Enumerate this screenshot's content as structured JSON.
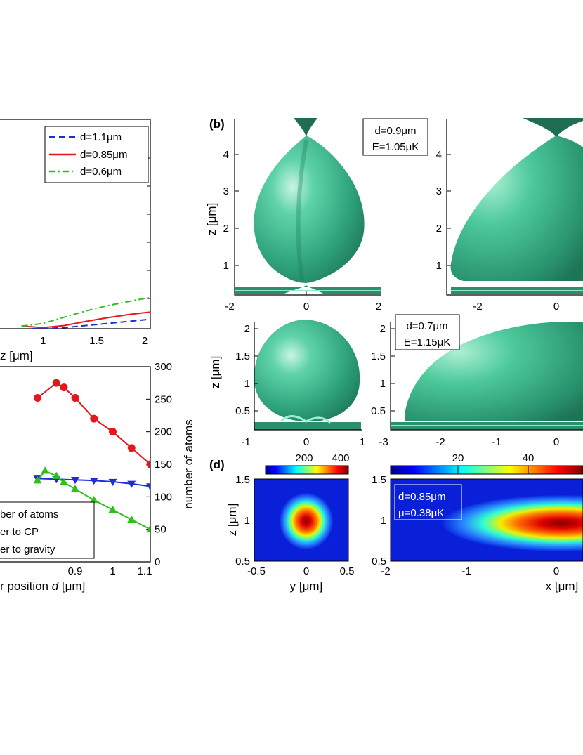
{
  "panels": {
    "b_label": "(b)",
    "d_label": "(d)"
  },
  "chart_data": [
    {
      "id": "top-left",
      "type": "line",
      "xlabel": "z [μm]",
      "xlim": [
        0.6,
        2
      ],
      "x_ticks": [
        "1",
        "1.5",
        "2"
      ],
      "legend": "top-right",
      "series": [
        {
          "name": "d=1.1μm",
          "color": "#1a2fd6",
          "style": "dashed",
          "x": [
            0.9,
            1.0,
            1.2,
            1.4,
            1.6,
            1.8,
            2.0
          ],
          "y": [
            0.0,
            0.0,
            0.02,
            0.06,
            0.1,
            0.14,
            0.18
          ]
        },
        {
          "name": "d=0.85μm",
          "color": "#e8161c",
          "style": "solid",
          "x": [
            0.8,
            1.0,
            1.2,
            1.4,
            1.6,
            1.8,
            2.0
          ],
          "y": [
            0.05,
            0.02,
            0.06,
            0.14,
            0.21,
            0.27,
            0.32
          ]
        },
        {
          "name": "d=0.6μm",
          "color": "#2fc01c",
          "style": "dash-dot",
          "x": [
            0.8,
            1.0,
            1.2,
            1.4,
            1.6,
            1.8,
            2.0
          ],
          "y": [
            0.05,
            0.1,
            0.22,
            0.34,
            0.44,
            0.52,
            0.6
          ]
        }
      ]
    },
    {
      "id": "bottom-left",
      "type": "line",
      "xlabel_visible": "r position ",
      "xlabel_var": "d",
      "xlabel_unit": " [μm]",
      "ylabel_right": "number of atoms",
      "xlim": [
        0.7,
        1.1
      ],
      "ylim_right": [
        0,
        300
      ],
      "x_ticks": [
        "0.9",
        "1",
        "1.1"
      ],
      "y_ticks_right": [
        "0",
        "50",
        "100",
        "150",
        "200",
        "250",
        "300"
      ],
      "legend": [
        "ber of atoms",
        "er to CP",
        "er to gravity"
      ],
      "series": [
        {
          "name": "number of atoms",
          "color": "#e8161c",
          "marker": "circle",
          "x": [
            0.8,
            0.85,
            0.87,
            0.9,
            0.95,
            1.0,
            1.05,
            1.1
          ],
          "y": [
            252,
            275,
            268,
            252,
            220,
            200,
            175,
            150
          ]
        },
        {
          "name": "barrier to CP",
          "color": "#1a2fd6",
          "marker": "triangle-down",
          "x": [
            0.8,
            0.85,
            0.9,
            0.95,
            1.0,
            1.05,
            1.1
          ],
          "y": [
            128,
            127,
            126,
            125,
            123,
            120,
            116
          ]
        },
        {
          "name": "barrier to gravity",
          "color": "#2fc01c",
          "marker": "triangle-up",
          "x": [
            0.8,
            0.82,
            0.85,
            0.87,
            0.9,
            0.95,
            1.0,
            1.05,
            1.1
          ],
          "y": [
            125,
            140,
            132,
            122,
            112,
            95,
            80,
            65,
            50
          ]
        }
      ]
    },
    {
      "id": "b-left",
      "type": "surface",
      "ylabel": "z [μm]",
      "x_ticks": [
        "-2",
        "0",
        "2"
      ],
      "y_ticks": [
        "1",
        "2",
        "3",
        "4"
      ],
      "annotation": [
        "d=0.9μm",
        "E=1.05μK"
      ]
    },
    {
      "id": "b-right",
      "type": "surface",
      "x_ticks": [
        "-2",
        "0"
      ],
      "y_ticks": [
        "1",
        "2",
        "3",
        "4"
      ]
    },
    {
      "id": "c-left",
      "type": "surface",
      "ylabel": "z [μm]",
      "x_ticks": [
        "-1",
        "0",
        "1"
      ],
      "y_ticks": [
        "0.5",
        "1",
        "1.5",
        "2"
      ]
    },
    {
      "id": "c-right",
      "type": "surface",
      "x_ticks": [
        "-3",
        "-2",
        "-1",
        "0"
      ],
      "y_ticks": [
        "0.5",
        "1",
        "1.5",
        "2"
      ],
      "annotation": [
        "d=0.7μm",
        "E=1.15μK"
      ]
    },
    {
      "id": "d-left",
      "type": "heatmap",
      "xlabel": "y [μm]",
      "ylabel": "z [μm]",
      "x_ticks": [
        "-0.5",
        "0",
        "0.5"
      ],
      "y_ticks": [
        "0.5",
        "1",
        "1.5"
      ],
      "colorbar_ticks": [
        "200",
        "400"
      ],
      "colorbar_range": [
        0,
        450
      ]
    },
    {
      "id": "d-right",
      "type": "heatmap",
      "xlabel": "x [μm]",
      "x_ticks": [
        "-2",
        "-1",
        "0"
      ],
      "y_ticks": [
        "0.5",
        "1",
        "1.5"
      ],
      "colorbar_ticks": [
        "20",
        "40"
      ],
      "annotation": [
        "d=0.85μm",
        "μ=0.38μK"
      ]
    }
  ]
}
